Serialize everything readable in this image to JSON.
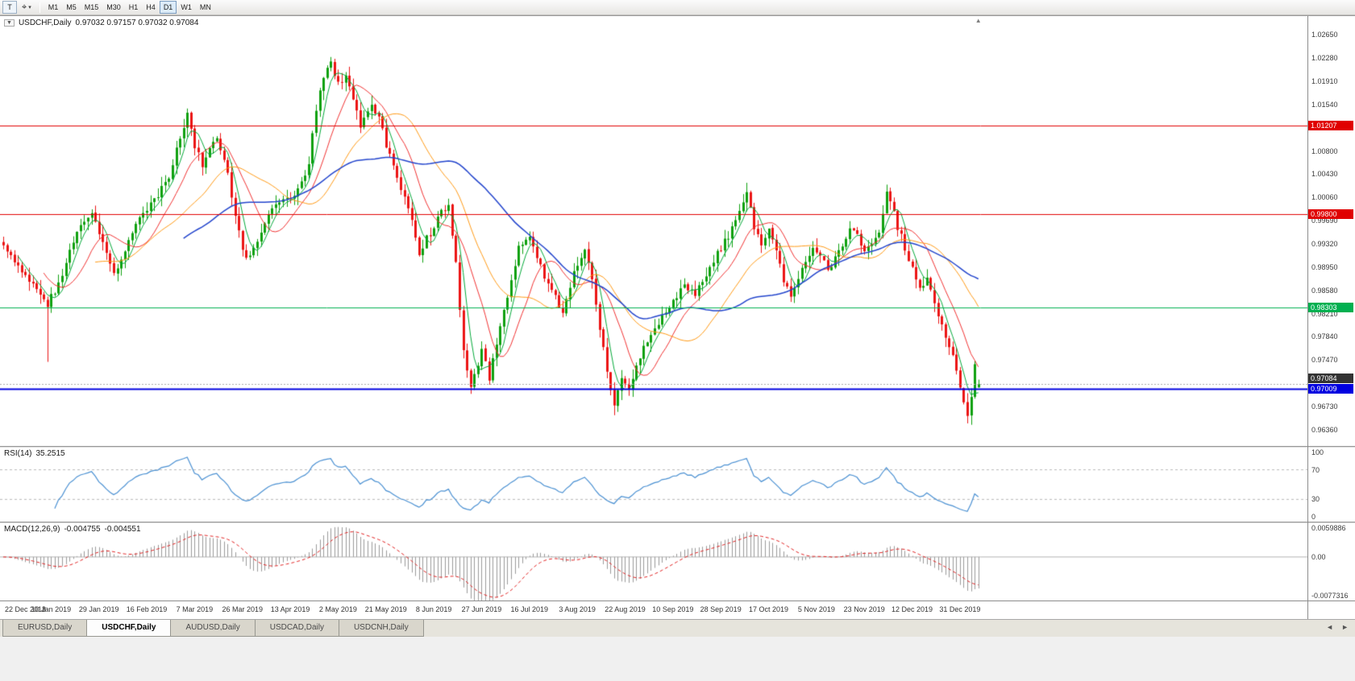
{
  "toolbar": {
    "text_tool_label": "T",
    "timeframes": [
      "M1",
      "M5",
      "M15",
      "M30",
      "H1",
      "H4",
      "D1",
      "W1",
      "MN"
    ],
    "active_timeframe": "D1"
  },
  "icons": {
    "chart_menu": "▼",
    "cursor_tool": "⌖",
    "dropdown": "▾",
    "tab_scroll_left": "◄",
    "tab_scroll_right": "►",
    "shift_marker": "▲"
  },
  "chart_header": {
    "symbol_label": "USDCHF,Daily",
    "ohlc": "0.97032 0.97157 0.97032 0.97084",
    "open": "0.97032",
    "high": "0.97157",
    "low": "0.97032",
    "close": "0.97084"
  },
  "price_axis": {
    "labels": [
      "1.02650",
      "1.02280",
      "1.01910",
      "1.01540",
      "1.00800",
      "1.00430",
      "1.00060",
      "0.99690",
      "0.99320",
      "0.98950",
      "0.98580",
      "0.98210",
      "0.97840",
      "0.97470",
      "0.96730",
      "0.96360"
    ]
  },
  "rsi": {
    "name": "RSI(14)",
    "value": "35.2515",
    "axis_labels": [
      "100",
      "70",
      "30",
      "0"
    ]
  },
  "macd": {
    "name": "MACD(12,26,9)",
    "value_macd": "-0.004755",
    "value_signal": "-0.004551",
    "axis_labels": [
      "0.0059886",
      "0.00",
      "-0.0077316"
    ]
  },
  "date_axis": [
    "22 Dec 2018",
    "10 Jan 2019",
    "29 Jan 2019",
    "16 Feb 2019",
    "7 Mar 2019",
    "26 Mar 2019",
    "13 Apr 2019",
    "2 May 2019",
    "21 May 2019",
    "8 Jun 2019",
    "27 Jun 2019",
    "16 Jul 2019",
    "3 Aug 2019",
    "22 Aug 2019",
    "10 Sep 2019",
    "28 Sep 2019",
    "17 Oct 2019",
    "5 Nov 2019",
    "23 Nov 2019",
    "12 Dec 2019",
    "31 Dec 2019"
  ],
  "tabbar": {
    "tabs": [
      {
        "label": "EURUSD,Daily",
        "active": false
      },
      {
        "label": "USDCHF,Daily",
        "active": true
      },
      {
        "label": "AUDUSD,Daily",
        "active": false
      },
      {
        "label": "USDCAD,Daily",
        "active": false
      },
      {
        "label": "USDCNH,Daily",
        "active": false
      }
    ]
  },
  "chart_data": {
    "type": "candlestick",
    "symbol": "USDCHF",
    "timeframe": "Daily",
    "current_bar": {
      "open": 0.97032,
      "high": 0.97157,
      "low": 0.97032,
      "close": 0.97084
    },
    "visible_price_range": {
      "max": 1.0295,
      "min": 0.961
    },
    "candle_count": 266,
    "anchor_closes": [
      [
        0,
        0.9935
      ],
      [
        3,
        0.9905
      ],
      [
        6,
        0.988
      ],
      [
        9,
        0.9855
      ],
      [
        12,
        0.9835
      ],
      [
        15,
        0.987
      ],
      [
        18,
        0.992
      ],
      [
        21,
        0.9965
      ],
      [
        24,
        0.9985
      ],
      [
        26,
        0.995
      ],
      [
        30,
        0.988
      ],
      [
        33,
        0.992
      ],
      [
        36,
        0.996
      ],
      [
        39,
        0.999
      ],
      [
        42,
        1.001
      ],
      [
        45,
        1.004
      ],
      [
        48,
        1.0105
      ],
      [
        50,
        1.0135
      ],
      [
        52,
        1.009
      ],
      [
        54,
        1.006
      ],
      [
        58,
        1.01
      ],
      [
        61,
        1.004
      ],
      [
        64,
        0.995
      ],
      [
        66,
        0.9905
      ],
      [
        69,
        0.994
      ],
      [
        72,
        0.9985
      ],
      [
        75,
        1.0
      ],
      [
        78,
        1.0005
      ],
      [
        81,
        1.003
      ],
      [
        83,
        1.006
      ],
      [
        85,
        1.015
      ],
      [
        87,
        1.0195
      ],
      [
        89,
        1.0225
      ],
      [
        91,
        1.0185
      ],
      [
        93,
        1.02
      ],
      [
        95,
        1.016
      ],
      [
        97,
        1.012
      ],
      [
        100,
        1.0155
      ],
      [
        103,
        1.012
      ],
      [
        104,
        1.0085
      ],
      [
        107,
        1.004
      ],
      [
        110,
        0.999
      ],
      [
        113,
        0.992
      ],
      [
        116,
        0.995
      ],
      [
        119,
        0.9985
      ],
      [
        121,
        0.999
      ],
      [
        123,
        0.99
      ],
      [
        125,
        0.976
      ],
      [
        127,
        0.9705
      ],
      [
        130,
        0.976
      ],
      [
        132,
        0.972
      ],
      [
        135,
        0.98
      ],
      [
        138,
        0.987
      ],
      [
        140,
        0.993
      ],
      [
        143,
        0.994
      ],
      [
        146,
        0.9895
      ],
      [
        149,
        0.9855
      ],
      [
        152,
        0.9825
      ],
      [
        155,
        0.9885
      ],
      [
        158,
        0.9925
      ],
      [
        160,
        0.988
      ],
      [
        162,
        0.98
      ],
      [
        164,
        0.973
      ],
      [
        166,
        0.9675
      ],
      [
        168,
        0.972
      ],
      [
        170,
        0.9695
      ],
      [
        173,
        0.9755
      ],
      [
        176,
        0.9785
      ],
      [
        179,
        0.9815
      ],
      [
        182,
        0.984
      ],
      [
        185,
        0.9865
      ],
      [
        188,
        0.985
      ],
      [
        191,
        0.9885
      ],
      [
        194,
        0.9915
      ],
      [
        197,
        0.9945
      ],
      [
        200,
        0.9985
      ],
      [
        202,
        1.001
      ],
      [
        204,
        0.996
      ],
      [
        206,
        0.993
      ],
      [
        208,
        0.9955
      ],
      [
        210,
        0.992
      ],
      [
        212,
        0.9875
      ],
      [
        214,
        0.9845
      ],
      [
        216,
        0.988
      ],
      [
        218,
        0.9905
      ],
      [
        220,
        0.993
      ],
      [
        222,
        0.9915
      ],
      [
        224,
        0.989
      ],
      [
        226,
        0.991
      ],
      [
        228,
        0.993
      ],
      [
        230,
        0.9955
      ],
      [
        232,
        0.9945
      ],
      [
        234,
        0.992
      ],
      [
        236,
        0.9935
      ],
      [
        238,
        0.995
      ],
      [
        240,
        1.002
      ],
      [
        243,
        0.996
      ],
      [
        245,
        0.9925
      ],
      [
        247,
        0.9895
      ],
      [
        249,
        0.986
      ],
      [
        251,
        0.9875
      ],
      [
        253,
        0.984
      ],
      [
        255,
        0.9805
      ],
      [
        257,
        0.977
      ],
      [
        259,
        0.9735
      ],
      [
        261,
        0.968
      ],
      [
        262,
        0.9655
      ],
      [
        263,
        0.969
      ],
      [
        264,
        0.9735
      ],
      [
        265,
        0.9708
      ]
    ],
    "key_points": [
      {
        "index": 12,
        "low": 0.9744
      },
      {
        "index": 89,
        "high": 1.0226
      },
      {
        "index": 127,
        "low": 0.9693
      },
      {
        "index": 166,
        "low": 0.9659
      },
      {
        "index": 262,
        "low": 0.9646
      }
    ],
    "horizontal_levels": [
      {
        "price": 1.01207,
        "label": "1.01207",
        "color": "#e00000"
      },
      {
        "price": 0.998,
        "label": "0.99800",
        "color": "#e00000"
      },
      {
        "price": 0.98303,
        "label": "0.98303",
        "color": "#00b050"
      },
      {
        "price": 0.97009,
        "label": "0.97009",
        "color": "#0000e0"
      }
    ],
    "current_price_line": {
      "price": 0.97084,
      "label": "0.97084",
      "line_color": "#aaaaaa",
      "label_bg": "#333333"
    },
    "moving_averages": [
      {
        "window": 5,
        "color": "#00a838"
      },
      {
        "window": 12,
        "color": "#f03030"
      },
      {
        "window": 26,
        "color": "#ff9914"
      },
      {
        "window": 50,
        "color": "#2244cc"
      }
    ],
    "colors": {
      "up": "#0fa00f",
      "down": "#eb1414"
    },
    "indicators": {
      "rsi": {
        "period": 14,
        "current": 35.2515,
        "levels": [
          70,
          30
        ],
        "range": [
          0,
          100
        ],
        "color": "#4a90d2",
        "level_color": "#b8b8b8"
      },
      "macd": {
        "fast": 12,
        "slow": 26,
        "signal": 9,
        "current_macd": -0.004755,
        "current_signal": -0.004551,
        "range": [
          -0.008,
          0.0062
        ],
        "histogram_color": "#9a9a9a",
        "signal_color": "#e02020",
        "zero_color": "#b0b0b0"
      }
    }
  }
}
